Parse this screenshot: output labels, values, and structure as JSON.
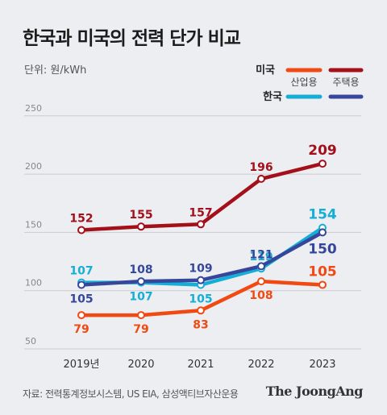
{
  "title": "한국과 미국의 전력 단가 비교",
  "unit_label": "단위: 원/kWh",
  "source": "자료: 전력통계정보시스템, US EIA, 삼성액티브자산운용",
  "brand": "The JoongAng",
  "legend": {
    "us": "미국",
    "korea": "한국",
    "industrial": "산업용",
    "residential": "주택용"
  },
  "colors": {
    "us_industrial": "#f04a12",
    "us_residential": "#a3101a",
    "korea_industrial": "#15aed6",
    "korea_residential": "#36479b"
  },
  "chart_data": {
    "type": "line",
    "title": "한국과 미국의 전력 단가 비교",
    "ylabel": "단위: 원/kWh",
    "categories": [
      "2019년",
      "2020",
      "2021",
      "2022",
      "2023"
    ],
    "ylim": [
      50,
      250
    ],
    "yticks": [
      50,
      100,
      150,
      200,
      250
    ],
    "grid": true,
    "legend_position": "top-right",
    "series": [
      {
        "key": "us_residential",
        "values": [
          152,
          155,
          157,
          196,
          209
        ]
      },
      {
        "key": "korea_industrial",
        "values": [
          107,
          107,
          105,
          119,
          154
        ]
      },
      {
        "key": "korea_residential",
        "values": [
          105,
          108,
          109,
          121,
          150
        ]
      },
      {
        "key": "us_industrial",
        "values": [
          79,
          79,
          83,
          108,
          105
        ]
      }
    ]
  }
}
